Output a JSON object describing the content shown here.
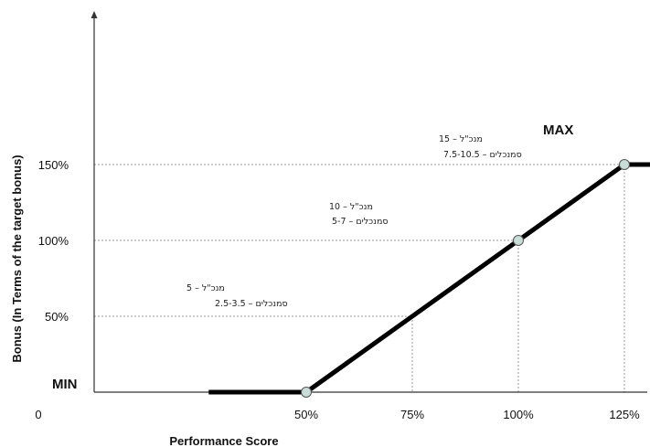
{
  "chart_data": {
    "type": "line",
    "title": "",
    "xlabel": "Performance Score",
    "ylabel": "Bonus (In Terms of the target bonus)",
    "x_unit": "%",
    "y_unit": "%",
    "xlim": [
      0,
      150
    ],
    "ylim": [
      0,
      190
    ],
    "origin_label": "0",
    "x_ticks": [
      50,
      75,
      100,
      125
    ],
    "x_tick_labels": [
      "50%",
      "75%",
      "100%",
      "125%"
    ],
    "y_ticks": [
      50,
      100,
      150
    ],
    "y_tick_labels": [
      "50%",
      "100%",
      "150%"
    ],
    "grid": false,
    "legend": "none",
    "series": [
      {
        "x": [
          27,
          50,
          75,
          100,
          125,
          150
        ],
        "y": [
          0,
          0,
          50,
          100,
          150,
          150
        ],
        "color": "#000000"
      }
    ],
    "markers": [
      {
        "x": 50,
        "y": 0
      },
      {
        "x": 100,
        "y": 100
      },
      {
        "x": 125,
        "y": 150
      }
    ],
    "marker_color": "#c9dcd8",
    "guide_points": [
      {
        "x": 75,
        "y": 50
      },
      {
        "x": 100,
        "y": 100
      },
      {
        "x": 125,
        "y": 150
      }
    ],
    "bound_labels": {
      "min": "MIN",
      "max": "MAX"
    },
    "annotations": [
      {
        "x": 75,
        "y": 50,
        "line1": "מנכ\"ל – 5",
        "line2": "סמנכלים – 2.5-3.5"
      },
      {
        "x": 100,
        "y": 100,
        "line1": "מנכ\"ל – 10",
        "line2": "סמנכלים – 5-7"
      },
      {
        "x": 125,
        "y": 150,
        "line1": "מנכ\"ל – 15",
        "line2": "סמנכלים – 7.5-10.5"
      }
    ]
  }
}
